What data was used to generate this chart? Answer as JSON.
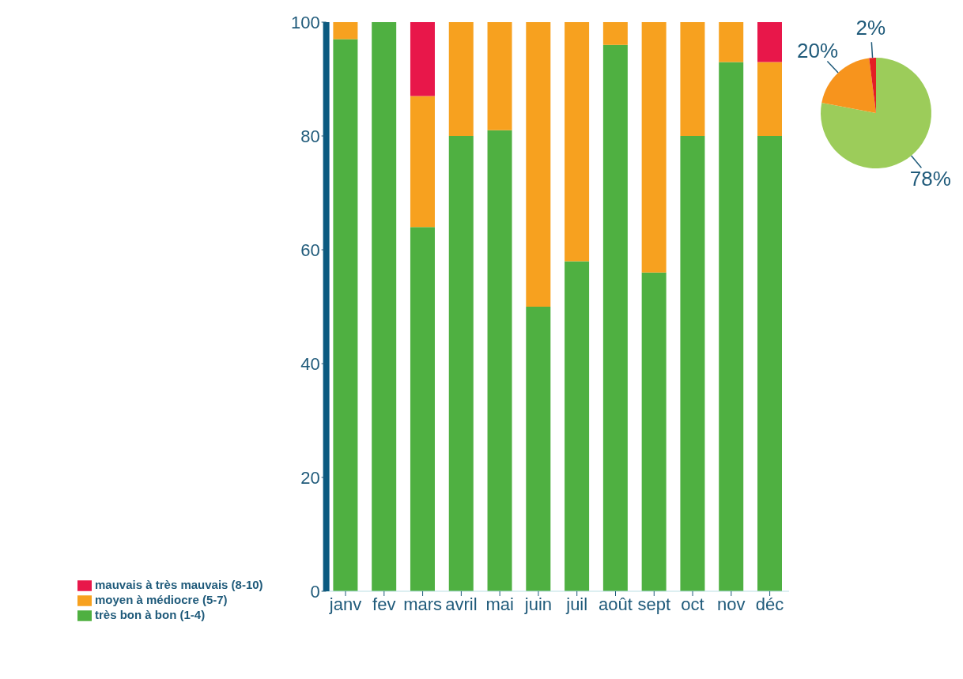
{
  "chart_data": [
    {
      "type": "bar",
      "stacked": true,
      "categories": [
        "janv",
        "fev",
        "mars",
        "avril",
        "mai",
        "juin",
        "juil",
        "août",
        "sept",
        "oct",
        "nov",
        "déc"
      ],
      "series": [
        {
          "name": "très bon à bon (1-4)",
          "color": "#4fb041",
          "values": [
            97,
            100,
            64,
            80,
            81,
            50,
            58,
            96,
            56,
            80,
            93,
            80
          ]
        },
        {
          "name": "moyen à médiocre (5-7)",
          "color": "#f7a11f",
          "values": [
            3,
            0,
            23,
            20,
            19,
            50,
            42,
            4,
            44,
            20,
            7,
            13
          ]
        },
        {
          "name": "mauvais à très mauvais (8-10)",
          "color": "#e8174a",
          "values": [
            0,
            0,
            13,
            0,
            0,
            0,
            0,
            0,
            0,
            0,
            0,
            7
          ]
        }
      ],
      "ylim": [
        0,
        100
      ],
      "yticks": [
        0,
        20,
        40,
        60,
        80,
        100
      ],
      "grid": false,
      "legend": "bottom left"
    },
    {
      "type": "pie",
      "categories": [
        null,
        null,
        null
      ],
      "values": [
        78,
        20,
        2
      ],
      "colors": [
        "#9ccc5a",
        "#f7941d",
        "#e31e24"
      ],
      "value_labels": [
        "78%",
        "20%",
        "2%"
      ]
    }
  ]
}
